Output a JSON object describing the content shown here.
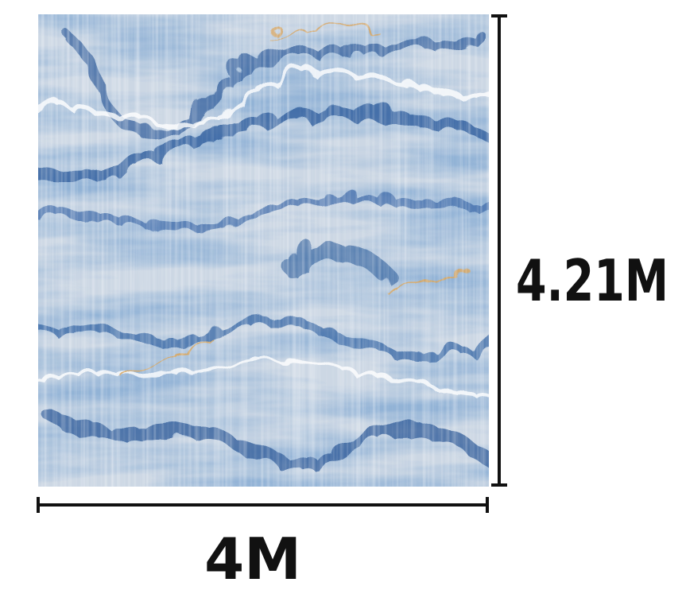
{
  "dimensions": {
    "width": "4M",
    "height": "4.21M"
  }
}
